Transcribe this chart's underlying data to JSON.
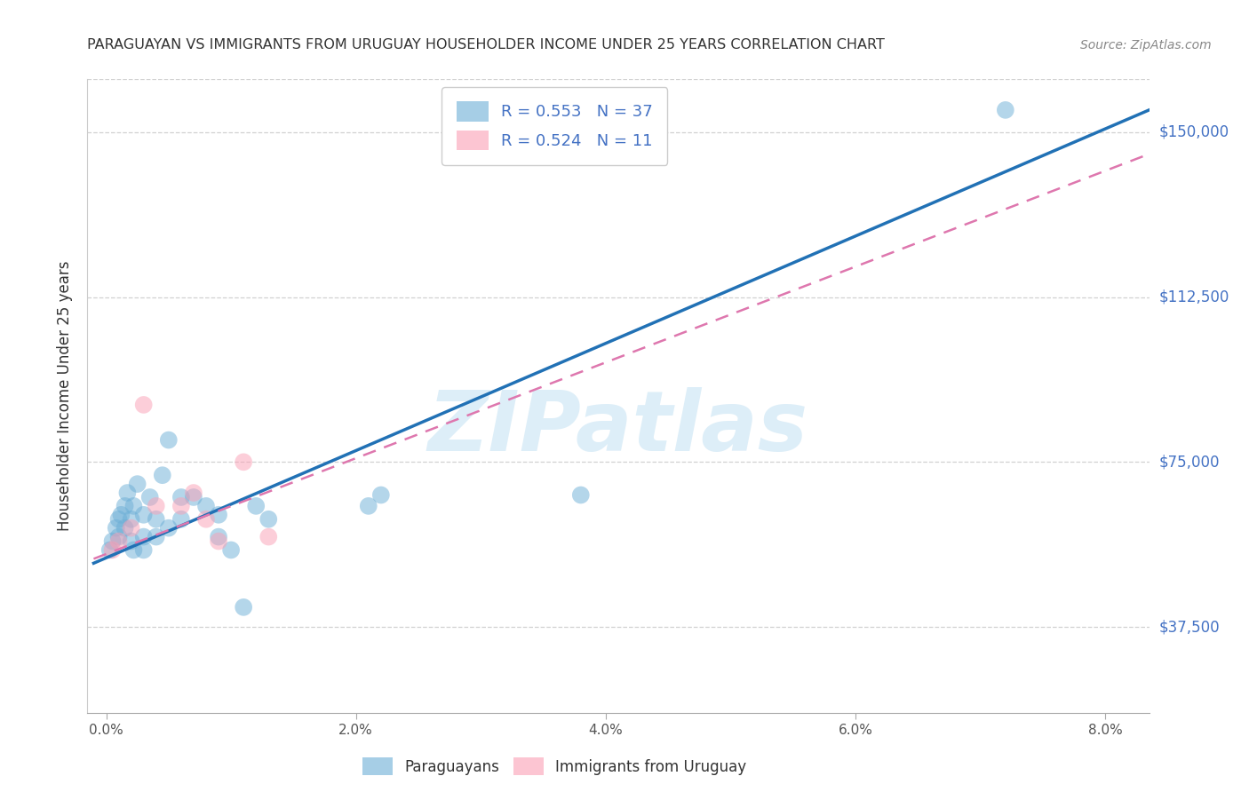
{
  "title": "PARAGUAYAN VS IMMIGRANTS FROM URUGUAY HOUSEHOLDER INCOME UNDER 25 YEARS CORRELATION CHART",
  "source": "Source: ZipAtlas.com",
  "xlabel_ticks": [
    "0.0%",
    "2.0%",
    "4.0%",
    "6.0%",
    "8.0%"
  ],
  "xlabel_vals": [
    0.0,
    0.02,
    0.04,
    0.06,
    0.08
  ],
  "ylabel_ticks": [
    "$37,500",
    "$75,000",
    "$112,500",
    "$150,000"
  ],
  "ylabel_vals": [
    37500,
    75000,
    112500,
    150000
  ],
  "ymin": 18000,
  "ymax": 162000,
  "xmin": -0.0015,
  "xmax": 0.0835,
  "ylabel": "Householder Income Under 25 years",
  "watermark": "ZIPatlas",
  "legend_blue_R": "R = 0.553",
  "legend_blue_N": "N = 37",
  "legend_pink_R": "R = 0.524",
  "legend_pink_N": "N = 11",
  "blue_scatter_x": [
    0.0003,
    0.0005,
    0.0008,
    0.001,
    0.001,
    0.0012,
    0.0015,
    0.0015,
    0.0017,
    0.002,
    0.002,
    0.0022,
    0.0022,
    0.0025,
    0.003,
    0.003,
    0.003,
    0.0035,
    0.004,
    0.004,
    0.0045,
    0.005,
    0.005,
    0.006,
    0.006,
    0.007,
    0.008,
    0.009,
    0.009,
    0.01,
    0.011,
    0.012,
    0.013,
    0.021,
    0.022,
    0.038,
    0.072
  ],
  "blue_scatter_y": [
    55000,
    57000,
    60000,
    62000,
    58000,
    63000,
    65000,
    60000,
    68000,
    62000,
    57000,
    65000,
    55000,
    70000,
    63000,
    58000,
    55000,
    67000,
    62000,
    58000,
    72000,
    80000,
    60000,
    67000,
    62000,
    67000,
    65000,
    63000,
    58000,
    55000,
    42000,
    65000,
    62000,
    65000,
    67500,
    67500,
    155000
  ],
  "pink_scatter_x": [
    0.0005,
    0.001,
    0.002,
    0.003,
    0.004,
    0.006,
    0.007,
    0.008,
    0.009,
    0.011,
    0.013
  ],
  "pink_scatter_y": [
    55000,
    57000,
    60000,
    88000,
    65000,
    65000,
    68000,
    62000,
    57000,
    75000,
    58000
  ],
  "blue_line_x": [
    -0.001,
    0.0835
  ],
  "blue_line_y": [
    52000,
    155000
  ],
  "pink_line_x": [
    -0.001,
    0.0835
  ],
  "pink_line_y": [
    53000,
    145000
  ],
  "blue_color": "#6baed6",
  "pink_color": "#fa9fb5",
  "blue_line_color": "#2171b5",
  "pink_line_color": "#de77ae",
  "grid_color": "#cccccc",
  "title_color": "#333333",
  "axis_label_color": "#555555",
  "right_tick_color": "#4472c4",
  "watermark_color": "#ddeef8",
  "background_color": "#ffffff"
}
